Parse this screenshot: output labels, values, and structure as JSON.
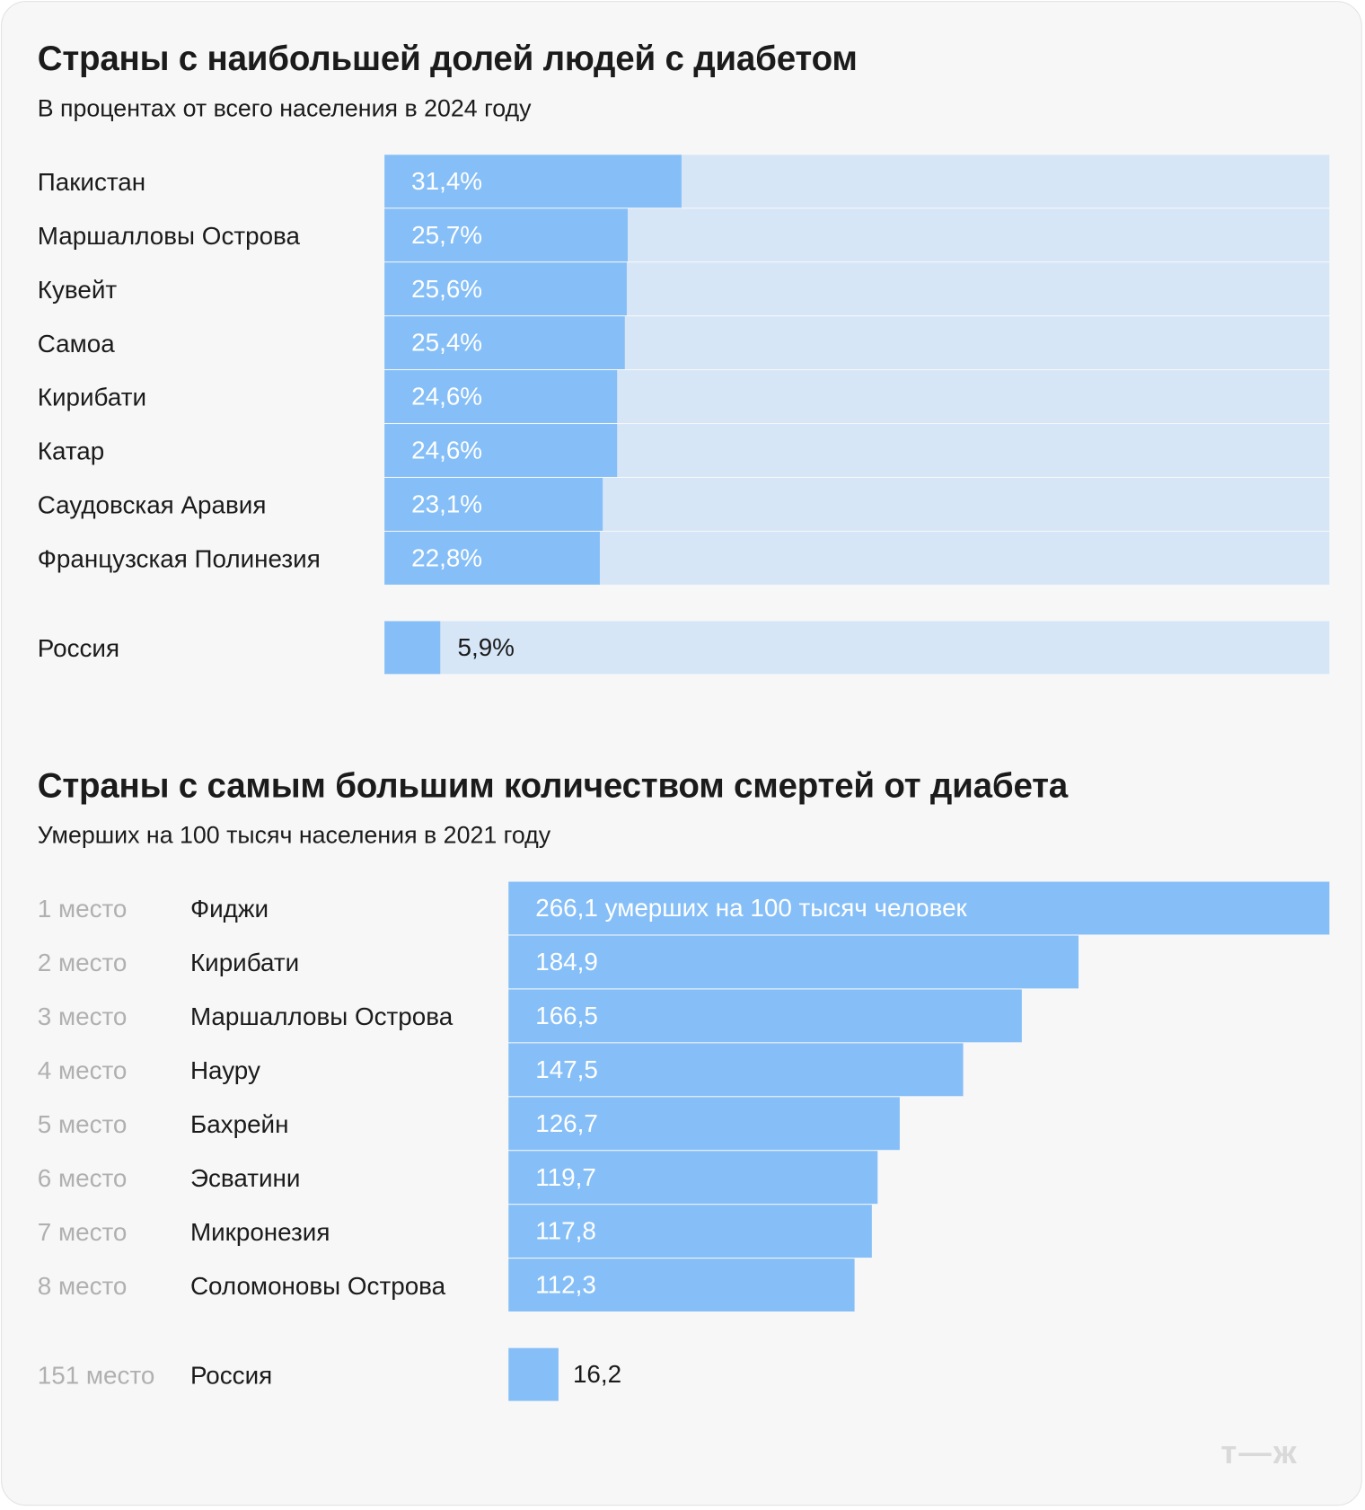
{
  "chart_data": [
    {
      "type": "bar",
      "orientation": "horizontal",
      "title": "Страны с наибольшей долей людей с диабетом",
      "subtitle": "В процентах от всего населения в 2024 году",
      "xlim": [
        0,
        100
      ],
      "categories": [
        "Пакистан",
        "Маршалловы Острова",
        "Кувейт",
        "Самоа",
        "Кирибати",
        "Катар",
        "Саудовская Аравия",
        "Французская Полинезия"
      ],
      "values": [
        31.4,
        25.7,
        25.6,
        25.4,
        24.6,
        24.6,
        23.1,
        22.8
      ],
      "labels": [
        "31,4%",
        "25,7%",
        "25,6%",
        "25,4%",
        "24,6%",
        "24,6%",
        "23,1%",
        "22,8%"
      ],
      "extra": {
        "category": "Россия",
        "value": 5.9,
        "label": "5,9%"
      },
      "colors": {
        "bar": "#86bff7",
        "track": "#d6e6f7"
      }
    },
    {
      "type": "bar",
      "orientation": "horizontal",
      "title": "Страны с самым большим количеством смертей от диабета",
      "subtitle": "Умерших на 100 тысяч населения в 2021 году",
      "ranks": [
        "1 место",
        "2 место",
        "3 место",
        "4 место",
        "5 место",
        "6 место",
        "7 место",
        "8 место"
      ],
      "categories": [
        "Фиджи",
        "Кирибати",
        "Маршалловы Острова",
        "Науру",
        "Бахрейн",
        "Эсватини",
        "Микронезия",
        "Соломоновы Острова"
      ],
      "values": [
        266.1,
        184.9,
        166.5,
        147.5,
        126.7,
        119.7,
        117.8,
        112.3
      ],
      "labels": [
        "266,1 умерших на 100 тысяч человек",
        "184,9",
        "166,5",
        "147,5",
        "126,7",
        "119,7",
        "117,8",
        "112,3"
      ],
      "extra": {
        "rank": "151 место",
        "category": "Россия",
        "value": 16.2,
        "label": "16,2"
      },
      "colors": {
        "bar": "#86bff7"
      }
    }
  ],
  "logo": "т—ж"
}
